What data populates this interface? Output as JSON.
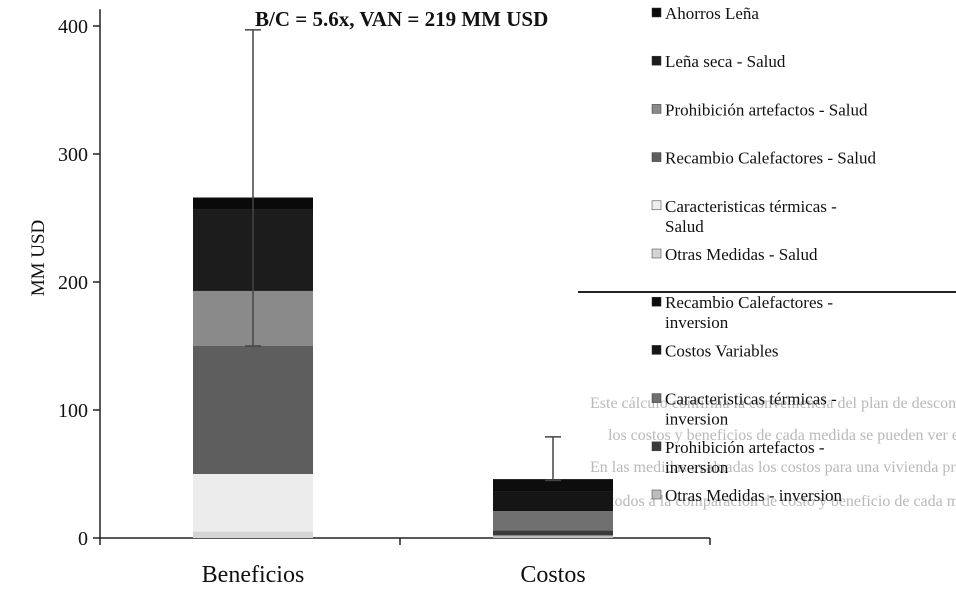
{
  "chart_data": {
    "type": "bar",
    "stacked": true,
    "title": "B/C = 5.6x, VAN = 219 MM USD",
    "ylabel": "MM USD",
    "xlabel": "",
    "ylim": [
      0,
      410
    ],
    "yticks": [
      0,
      100,
      200,
      300,
      400
    ],
    "categories": [
      "Beneficios",
      "Costos"
    ],
    "series": [
      {
        "name": "Otras Medidas - Salud",
        "values": [
          5,
          0
        ],
        "color": "#d4d4d4"
      },
      {
        "name": "Caracteristicas térmicas - Salud",
        "values": [
          45,
          0
        ],
        "color": "#ececec"
      },
      {
        "name": "Recambio Calefactores - Salud",
        "values": [
          100,
          0
        ],
        "color": "#5e5e5e"
      },
      {
        "name": "Prohibición artefactos - Salud",
        "values": [
          43,
          0
        ],
        "color": "#8a8a8a"
      },
      {
        "name": "Leña seca - Salud",
        "values": [
          64,
          0
        ],
        "color": "#1c1c1c"
      },
      {
        "name": "Ahorros Leña",
        "values": [
          9,
          0
        ],
        "color": "#0a0a0a"
      },
      {
        "name": "Otras Medidas - inversion",
        "values": [
          0,
          2
        ],
        "color": "#bdbdbd"
      },
      {
        "name": "Prohibición artefactos - inversion",
        "values": [
          0,
          4
        ],
        "color": "#3a3a3a"
      },
      {
        "name": "Caracteristicas térmicas - inversion",
        "values": [
          0,
          15
        ],
        "color": "#707070"
      },
      {
        "name": "Costos Variables",
        "values": [
          0,
          15
        ],
        "color": "#151515"
      },
      {
        "name": "Recambio Calefactores - inversion",
        "values": [
          0,
          10
        ],
        "color": "#0d0d0d"
      }
    ],
    "error_bars": [
      {
        "category": "Beneficios",
        "low": 150,
        "high": 397
      },
      {
        "category": "Costos",
        "low": 45,
        "high": 79
      }
    ],
    "legend_position": "right",
    "legend": [
      "Ahorros Leña",
      "Leña seca - Salud",
      "Prohibición artefactos - Salud",
      "Recambio Calefactores - Salud",
      "Caracteristicas térmicas - Salud",
      "Otras Medidas - Salud",
      "Recambio Calefactores - inversion",
      "Costos Variables",
      "Caracteristicas térmicas - inversion",
      "Prohibición artefactos - inversion",
      "Otras Medidas - inversion"
    ],
    "legend_colors": [
      "#0a0a0a",
      "#1c1c1c",
      "#8a8a8a",
      "#5e5e5e",
      "#ececec",
      "#d4d4d4",
      "#0d0d0d",
      "#151515",
      "#707070",
      "#3a3a3a",
      "#bdbdbd"
    ]
  },
  "background_text": [
    "Este cálculo confirma la conveniencia del plan de descontaminación",
    "los costos y beneficios de cada medida se pueden ver en detalle",
    "En las medidas evaluadas los costos para una vivienda promedio",
    "todos a la comparación de costo y beneficio de cada medida"
  ]
}
